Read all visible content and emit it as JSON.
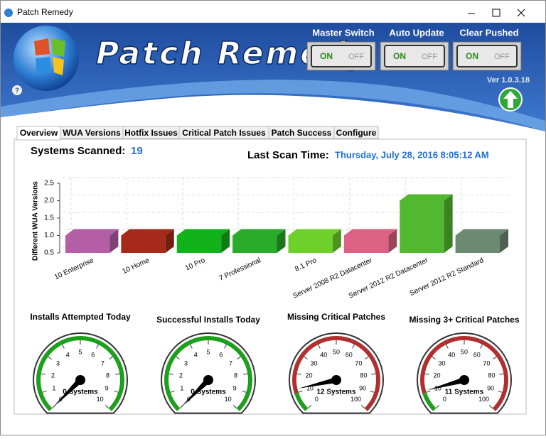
{
  "window": {
    "title": "Patch Remedy"
  },
  "header": {
    "app_name": "Patch Remedy",
    "help": "?",
    "version": "Ver 1.0.3.18"
  },
  "switches": [
    {
      "label": "Master Switch",
      "on": "ON",
      "off": "OFF"
    },
    {
      "label": "Auto Update",
      "on": "ON",
      "off": "OFF"
    },
    {
      "label": "Clear Pushed",
      "on": "ON",
      "off": "OFF"
    }
  ],
  "tabs": [
    "Overview",
    "WUA Versions",
    "Hotfix Issues",
    "Critical Patch Issues",
    "Patch Success",
    "Configure"
  ],
  "summary": {
    "systems_scanned_label": "Systems Scanned:",
    "systems_scanned": 19,
    "last_scan_label": "Last Scan Time:",
    "last_scan_time": "Thursday, July 28, 2016 8:05:12 AM"
  },
  "chart_data": {
    "type": "bar3d",
    "y_label": "Different WUA Versions",
    "categories": [
      "10 Enterprise",
      "10 Home",
      "10 Pro",
      "7 Professional",
      "8.1 Pro",
      "Server 2008 R2 Datacenter",
      "Server 2012 R2 Datacenter",
      "Server 2012 R2 Standard"
    ],
    "values": [
      1,
      1,
      1,
      1,
      1,
      1,
      2,
      1
    ],
    "colors": [
      "#b45ea6",
      "#a62a1a",
      "#12b31a",
      "#2aac2a",
      "#6ed02a",
      "#dd6085",
      "#52b82f",
      "#6c8a72"
    ],
    "ylim": [
      0.5,
      2.5
    ],
    "yticks": [
      0.5,
      {
        "value": 1,
        "label": "1.0"
      },
      1.5,
      {
        "value": 2,
        "label": "2.0"
      },
      2.5
    ],
    "grid": true
  },
  "gauges": [
    {
      "title": "Installs Attempted Today",
      "value": 0,
      "value_label": "0 Systems",
      "min": 0,
      "max": 10,
      "ticks": [
        0,
        1,
        2,
        3,
        4,
        5,
        6,
        7,
        8,
        9,
        10
      ],
      "bands": [
        {
          "from": 0,
          "to": 10,
          "color": "#1aa01a"
        }
      ]
    },
    {
      "title": "Successful Installs Today",
      "value": 0,
      "value_label": "0 Systems",
      "min": 0,
      "max": 10,
      "ticks": [
        0,
        1,
        2,
        3,
        4,
        5,
        6,
        7,
        8,
        9,
        10
      ],
      "bands": [
        {
          "from": 0,
          "to": 10,
          "color": "#1aa01a"
        }
      ]
    },
    {
      "title": "Missing Critical Patches",
      "value": 12,
      "value_label": "12 Systems",
      "min": 0,
      "max": 100,
      "ticks": [
        0,
        10,
        20,
        30,
        40,
        50,
        60,
        70,
        80,
        90,
        100
      ],
      "bands": [
        {
          "from": 0,
          "to": 10,
          "color": "#1aa01a"
        },
        {
          "from": 10,
          "to": 100,
          "color": "#b03030"
        }
      ]
    },
    {
      "title": "Missing 3+ Critical Patches",
      "value": 11,
      "value_label": "11 Systems",
      "min": 0,
      "max": 100,
      "ticks": [
        0,
        10,
        20,
        30,
        40,
        50,
        60,
        70,
        80,
        90,
        100
      ],
      "bands": [
        {
          "from": 0,
          "to": 10,
          "color": "#1aa01a"
        },
        {
          "from": 10,
          "to": 100,
          "color": "#b03030"
        }
      ]
    }
  ]
}
